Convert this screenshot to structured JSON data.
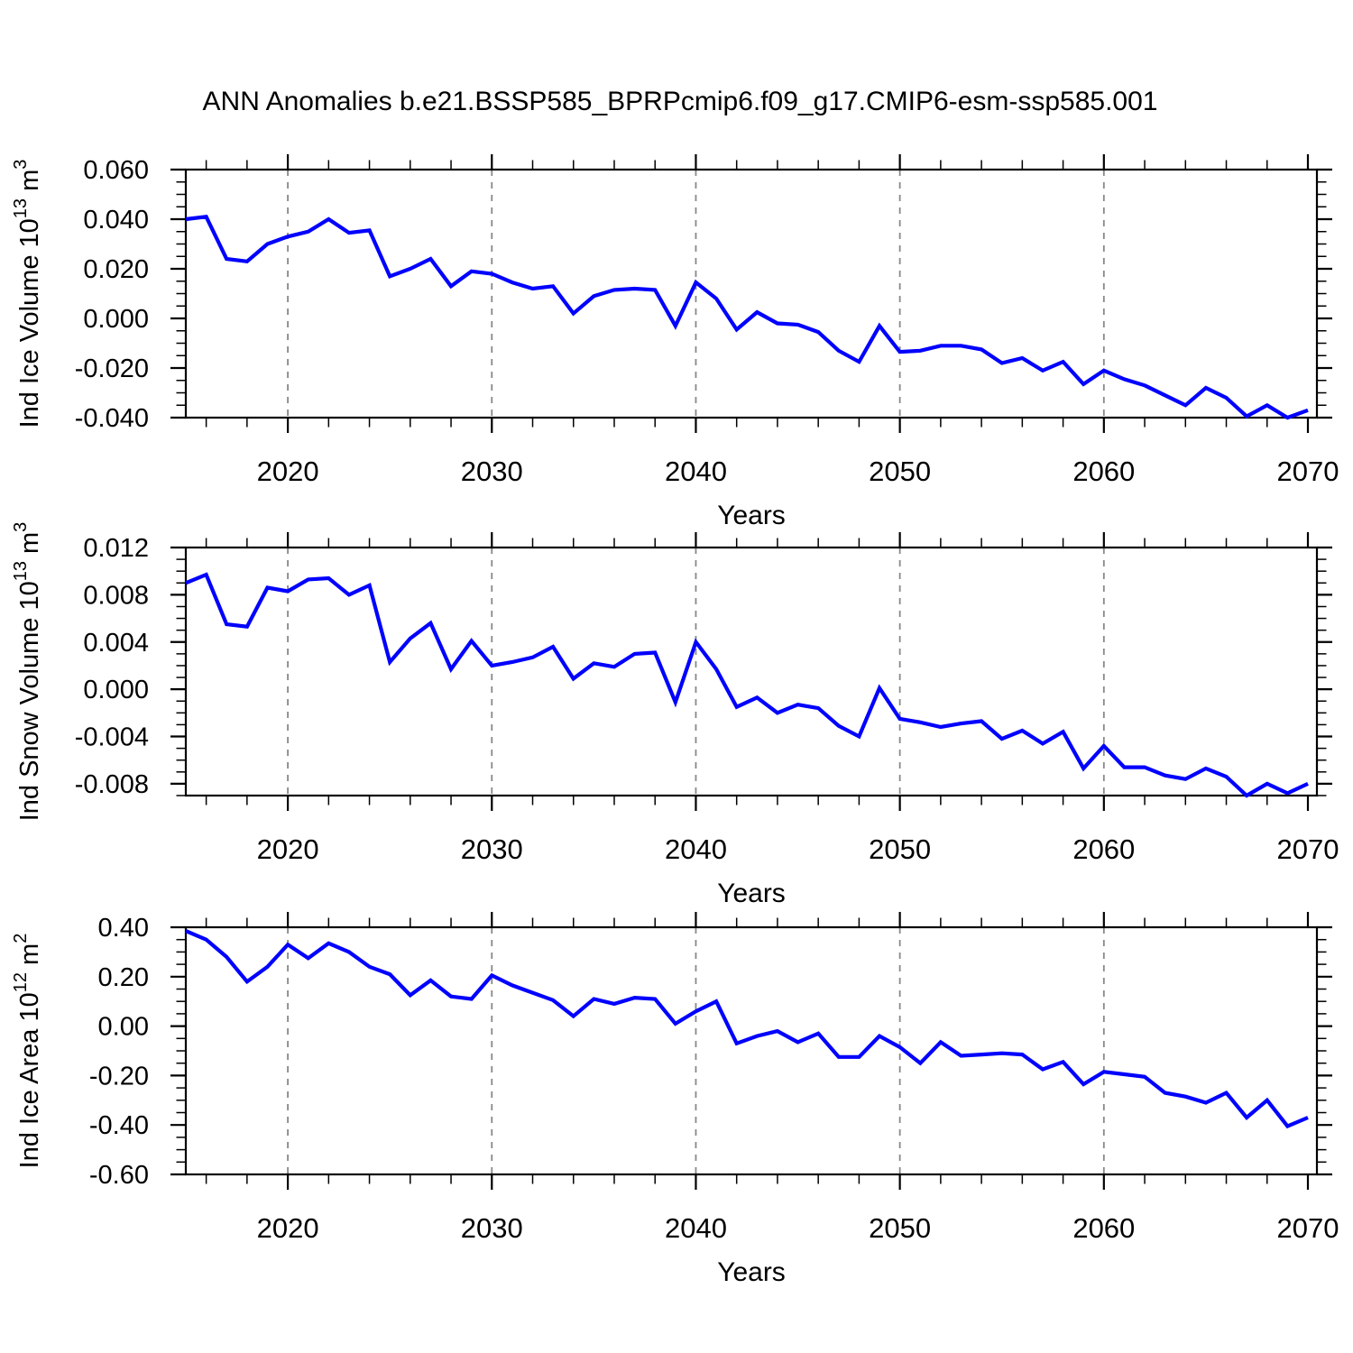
{
  "title": "ANN Anomalies b.e21.BSSP585_BPRPcmip6.f09_g17.CMIP6-esm-ssp585.001",
  "styles": {
    "line_color": "#0000ff",
    "grid_color": "#888888",
    "axis_color": "#000000",
    "text_color": "#000000"
  },
  "x_axis": {
    "label": "Years",
    "range": [
      2015,
      2070
    ],
    "major_ticks": [
      2020,
      2030,
      2040,
      2050,
      2060,
      2070
    ],
    "minor_step_years": 2,
    "gridline_years": [
      2020,
      2030,
      2040,
      2050,
      2060
    ]
  },
  "years": [
    2015,
    2016,
    2017,
    2018,
    2019,
    2020,
    2021,
    2022,
    2023,
    2024,
    2025,
    2026,
    2027,
    2028,
    2029,
    2030,
    2031,
    2032,
    2033,
    2034,
    2035,
    2036,
    2037,
    2038,
    2039,
    2040,
    2041,
    2042,
    2043,
    2044,
    2045,
    2046,
    2047,
    2048,
    2049,
    2050,
    2051,
    2052,
    2053,
    2054,
    2055,
    2056,
    2057,
    2058,
    2059,
    2060,
    2061,
    2062,
    2063,
    2064,
    2065,
    2066,
    2067,
    2068,
    2069,
    2070
  ],
  "chart_data": [
    {
      "type": "line",
      "series_name": "ind-ice-volume-anomaly",
      "ylabel_segments": [
        {
          "t": "Ind Ice Volume 10"
        },
        {
          "s": "13"
        },
        {
          "t": " m"
        },
        {
          "s": "3"
        }
      ],
      "y_major_ticks": [
        0.06,
        0.04,
        0.02,
        0.0,
        -0.02,
        -0.04
      ],
      "y_minor_step": 0.005,
      "ylim": [
        -0.04,
        0.06
      ],
      "y_decimals": 3,
      "values": [
        0.04,
        0.041,
        0.024,
        0.023,
        0.03,
        0.033,
        0.035,
        0.04,
        0.0345,
        0.0355,
        0.017,
        0.02,
        0.024,
        0.013,
        0.019,
        0.018,
        0.0145,
        0.012,
        0.013,
        0.002,
        0.009,
        0.0115,
        0.012,
        0.0115,
        -0.003,
        0.0145,
        0.008,
        -0.0045,
        0.0025,
        -0.002,
        -0.0025,
        -0.0055,
        -0.013,
        -0.0175,
        -0.003,
        -0.0135,
        -0.013,
        -0.011,
        -0.011,
        -0.0125,
        -0.018,
        -0.016,
        -0.021,
        -0.0175,
        -0.0265,
        -0.021,
        -0.0245,
        -0.027,
        -0.031,
        -0.035,
        -0.028,
        -0.032,
        -0.0395,
        -0.035,
        -0.04,
        -0.037
      ]
    },
    {
      "type": "line",
      "series_name": "ind-snow-volume-anomaly",
      "ylabel_segments": [
        {
          "t": "Ind Snow Volume 10"
        },
        {
          "s": "13"
        },
        {
          "t": " m"
        },
        {
          "s": "3"
        }
      ],
      "y_major_ticks": [
        0.012,
        0.008,
        0.004,
        0.0,
        -0.004,
        -0.008
      ],
      "y_minor_step": 0.001,
      "ylim": [
        -0.009,
        0.012
      ],
      "y_decimals": 3,
      "values": [
        0.009,
        0.0097,
        0.0055,
        0.0053,
        0.0086,
        0.0083,
        0.0093,
        0.0094,
        0.008,
        0.0088,
        0.0023,
        0.0043,
        0.0056,
        0.0017,
        0.0041,
        0.002,
        0.0023,
        0.0027,
        0.0036,
        0.0009,
        0.0022,
        0.0019,
        0.003,
        0.0031,
        -0.0011,
        0.004,
        0.0017,
        -0.0015,
        -0.0007,
        -0.002,
        -0.0013,
        -0.0016,
        -0.0031,
        -0.004,
        0.0001,
        -0.0025,
        -0.0028,
        -0.0032,
        -0.0029,
        -0.0027,
        -0.0042,
        -0.0035,
        -0.0046,
        -0.0036,
        -0.0067,
        -0.0048,
        -0.0066,
        -0.0066,
        -0.0073,
        -0.0076,
        -0.0067,
        -0.0074,
        -0.009,
        -0.008,
        -0.0088,
        -0.008
      ]
    },
    {
      "type": "line",
      "series_name": "ind-ice-area-anomaly",
      "ylabel_segments": [
        {
          "t": "Ind Ice Area 10"
        },
        {
          "s": "12"
        },
        {
          "t": " m"
        },
        {
          "s": "2"
        }
      ],
      "y_major_ticks": [
        0.4,
        0.2,
        0.0,
        -0.2,
        -0.4,
        -0.6
      ],
      "y_minor_step": 0.05,
      "ylim": [
        -0.6,
        0.4
      ],
      "y_decimals": 2,
      "values": [
        0.385,
        0.35,
        0.28,
        0.18,
        0.24,
        0.33,
        0.275,
        0.335,
        0.3,
        0.24,
        0.21,
        0.125,
        0.185,
        0.12,
        0.11,
        0.205,
        0.165,
        0.135,
        0.105,
        0.04,
        0.11,
        0.09,
        0.115,
        0.11,
        0.01,
        0.06,
        0.1,
        -0.07,
        -0.04,
        -0.02,
        -0.065,
        -0.03,
        -0.125,
        -0.125,
        -0.04,
        -0.085,
        -0.15,
        -0.065,
        -0.12,
        -0.115,
        -0.11,
        -0.115,
        -0.175,
        -0.145,
        -0.235,
        -0.185,
        -0.195,
        -0.205,
        -0.27,
        -0.285,
        -0.31,
        -0.27,
        -0.37,
        -0.3,
        -0.405,
        -0.37
      ]
    }
  ]
}
